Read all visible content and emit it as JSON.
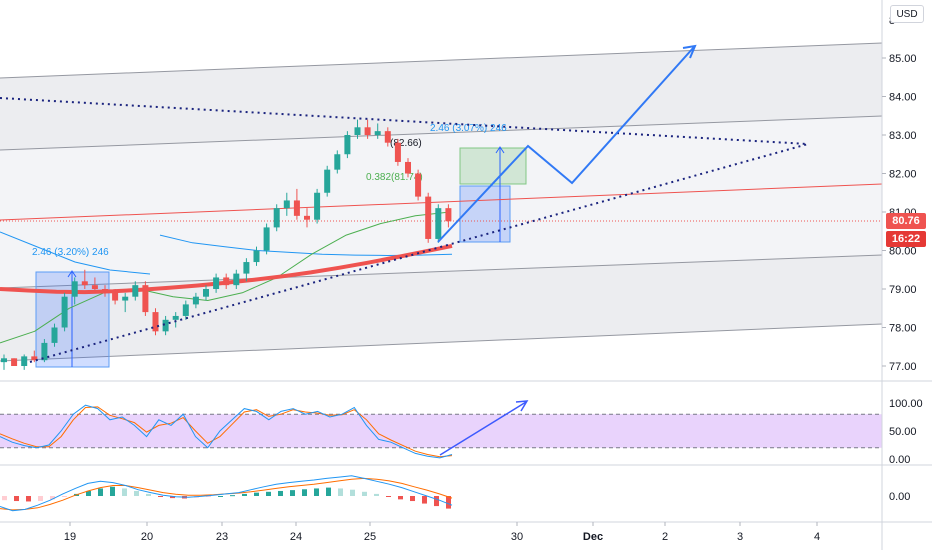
{
  "currency_button": "USD",
  "price_axis": {
    "ticks": [
      "85.00",
      "84.00",
      "83.00",
      "82.00",
      "81.00",
      "80.00",
      "79.00",
      "78.00",
      "77.00"
    ],
    "partial_top_tick": "8"
  },
  "price_tags": {
    "last_price": "80.76",
    "countdown": "16:22",
    "last_price_color": "#ef5350",
    "countdown_color": "#e53935"
  },
  "stoch_axis": {
    "ticks": [
      "100.00",
      "50.00",
      "0.00"
    ]
  },
  "macd_axis": {
    "ticks": [
      "0.00"
    ]
  },
  "time_axis": {
    "labels": [
      "19",
      "20",
      "23",
      "24",
      "25",
      "30",
      "Dec",
      "2",
      "3",
      "4"
    ]
  },
  "annotations": {
    "measure_left": "2.46 (3.20%) 246",
    "measure_right": "2.46 (3.07%) 246",
    "fib_high": "(82.66)",
    "fib_level": "0.382(81.74)"
  },
  "colors": {
    "up": "#26a69a",
    "down": "#ef5350",
    "projection": "#3179f5",
    "ma_slow": "#ef5350",
    "ma_fast": "#4caf50",
    "ma_blue": "#2196f3",
    "stoch_band": "#e1c4fb"
  },
  "chart_data": [
    {
      "type": "candlestick",
      "panel": "price",
      "ylim": [
        76.6,
        86.1
      ],
      "y_ticks": [
        77,
        78,
        79,
        80,
        81,
        82,
        83,
        84,
        85
      ],
      "x_labels": [
        "19",
        "20",
        "23",
        "24",
        "25",
        "30",
        "Dec",
        "2",
        "3",
        "4"
      ],
      "last_price": 80.76,
      "series": [
        {
          "name": "",
          "values": [
            [
              77.1,
              77.3,
              76.9,
              77.2
            ],
            [
              77.2,
              77.2,
              77.0,
              77.0
            ],
            [
              77.0,
              77.3,
              76.9,
              77.25
            ],
            [
              77.25,
              77.4,
              77.1,
              77.15
            ],
            [
              77.15,
              77.7,
              77.1,
              77.6
            ],
            [
              77.6,
              78.1,
              77.5,
              78.0
            ],
            [
              78.0,
              78.9,
              77.9,
              78.8
            ],
            [
              78.8,
              79.3,
              78.6,
              79.2
            ],
            [
              79.2,
              79.5,
              79.0,
              79.1
            ],
            [
              79.1,
              79.3,
              78.9,
              79.0
            ],
            [
              79.0,
              79.1,
              78.8,
              78.9
            ],
            [
              78.9,
              79.0,
              78.6,
              78.7
            ],
            [
              78.7,
              78.9,
              78.4,
              78.8
            ],
            [
              78.8,
              79.2,
              78.7,
              79.1
            ],
            [
              79.1,
              79.2,
              78.3,
              78.4
            ],
            [
              78.4,
              78.5,
              77.8,
              77.9
            ],
            [
              77.9,
              78.3,
              77.8,
              78.2
            ],
            [
              78.2,
              78.4,
              78.0,
              78.3
            ],
            [
              78.3,
              78.7,
              78.2,
              78.6
            ],
            [
              78.6,
              78.9,
              78.5,
              78.8
            ],
            [
              78.8,
              79.1,
              78.7,
              79.0
            ],
            [
              79.0,
              79.4,
              78.9,
              79.3
            ],
            [
              79.3,
              79.4,
              79.0,
              79.1
            ],
            [
              79.1,
              79.5,
              79.0,
              79.4
            ],
            [
              79.4,
              79.8,
              79.2,
              79.7
            ],
            [
              79.7,
              80.1,
              79.6,
              80.0
            ],
            [
              80.0,
              80.7,
              79.9,
              80.6
            ],
            [
              80.6,
              81.2,
              80.5,
              81.1
            ],
            [
              81.1,
              81.5,
              80.9,
              81.3
            ],
            [
              81.3,
              81.6,
              80.8,
              80.9
            ],
            [
              80.9,
              81.1,
              80.6,
              80.8
            ],
            [
              80.8,
              81.6,
              80.7,
              81.5
            ],
            [
              81.5,
              82.2,
              81.4,
              82.1
            ],
            [
              82.1,
              82.6,
              82.0,
              82.5
            ],
            [
              82.5,
              83.1,
              82.4,
              83.0
            ],
            [
              83.0,
              83.4,
              82.9,
              83.2
            ],
            [
              83.2,
              83.4,
              82.9,
              83.0
            ],
            [
              83.0,
              83.3,
              82.9,
              83.1
            ],
            [
              83.1,
              83.2,
              82.7,
              82.8
            ],
            [
              82.8,
              82.9,
              82.2,
              82.3
            ],
            [
              82.3,
              82.4,
              81.9,
              82.0
            ],
            [
              82.0,
              82.1,
              81.3,
              81.4
            ],
            [
              81.4,
              81.5,
              80.2,
              80.3
            ],
            [
              80.3,
              81.2,
              80.2,
              81.1
            ],
            [
              81.1,
              81.2,
              80.6,
              80.76
            ]
          ]
        },
        {
          "name": "",
          "values": [
            79.0,
            78.96,
            78.93,
            78.92,
            78.94,
            78.98,
            79.03,
            79.09,
            79.16,
            79.24,
            79.33,
            79.43,
            79.55,
            79.68,
            79.82,
            79.97,
            80.12
          ]
        },
        {
          "name": "",
          "values": [
            77.6,
            77.9,
            78.5,
            78.9,
            79.0,
            78.8,
            78.7,
            78.9,
            79.3,
            79.9,
            80.4,
            80.7,
            80.9,
            81.0
          ]
        },
        {
          "name": "",
          "values": [
            80.4,
            80.2,
            80.1,
            80.0,
            79.95,
            79.9,
            79.88,
            79.87,
            79.88,
            79.9
          ]
        }
      ]
    },
    {
      "type": "line",
      "panel": "stochastic",
      "ylim": [
        0,
        100
      ],
      "y_ticks": [
        0,
        50,
        100
      ],
      "band": [
        20,
        80
      ],
      "series": [
        {
          "name": "",
          "values": [
            40,
            30,
            24,
            20,
            25,
            50,
            80,
            96,
            90,
            70,
            75,
            60,
            40,
            70,
            60,
            80,
            40,
            20,
            50,
            70,
            90,
            85,
            70,
            85,
            90,
            80,
            85,
            75,
            80,
            92,
            60,
            35,
            30,
            20,
            10,
            5,
            2,
            8
          ]
        },
        {
          "name": "",
          "values": [
            45,
            36,
            28,
            22,
            22,
            40,
            70,
            92,
            93,
            78,
            72,
            65,
            48,
            60,
            64,
            74,
            50,
            28,
            40,
            62,
            84,
            88,
            76,
            80,
            88,
            84,
            82,
            78,
            79,
            88,
            70,
            45,
            34,
            24,
            14,
            8,
            4,
            6
          ]
        }
      ]
    },
    {
      "type": "bar",
      "panel": "macd",
      "y_ticks": [
        0
      ],
      "series": [
        {
          "name": "",
          "values": [
            -0.1,
            -0.12,
            -0.13,
            -0.12,
            -0.08,
            -0.02,
            0.05,
            0.12,
            0.18,
            0.22,
            0.18,
            0.12,
            0.05,
            -0.02,
            -0.05,
            -0.06,
            -0.04,
            -0.02,
            0.0,
            0.02,
            0.05,
            0.08,
            0.1,
            0.12,
            0.14,
            0.16,
            0.18,
            0.2,
            0.18,
            0.15,
            0.1,
            0.05,
            -0.02,
            -0.08,
            -0.12,
            -0.18,
            -0.24,
            -0.3
          ]
        },
        {
          "name": "",
          "values": [
            -0.25,
            -0.35,
            -0.32,
            -0.22,
            -0.1,
            0.05,
            0.18,
            0.3,
            0.35,
            0.32,
            0.25,
            0.15,
            0.08,
            0.02,
            -0.02,
            -0.03,
            -0.01,
            0.02,
            0.05,
            0.08,
            0.15,
            0.22,
            0.28,
            0.32,
            0.35,
            0.38,
            0.42,
            0.45,
            0.48,
            0.42,
            0.35,
            0.28,
            0.2,
            0.1,
            0.0,
            -0.1,
            -0.22
          ]
        },
        {
          "name": "",
          "values": [
            -0.3,
            -0.33,
            -0.32,
            -0.28,
            -0.2,
            -0.1,
            0.02,
            0.12,
            0.2,
            0.25,
            0.25,
            0.2,
            0.14,
            0.08,
            0.04,
            0.02,
            0.02,
            0.03,
            0.05,
            0.07,
            0.1,
            0.14,
            0.18,
            0.22,
            0.25,
            0.28,
            0.32,
            0.36,
            0.4,
            0.42,
            0.4,
            0.36,
            0.3,
            0.22,
            0.14,
            0.05,
            -0.05
          ]
        }
      ]
    }
  ]
}
